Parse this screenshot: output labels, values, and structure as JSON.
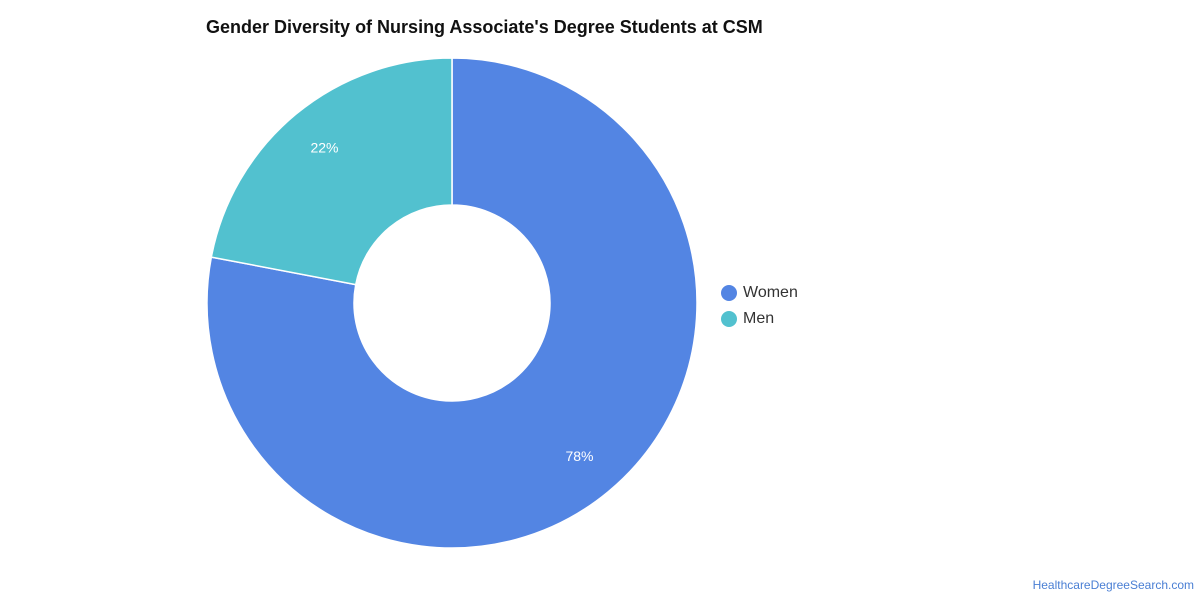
{
  "chart_data": {
    "type": "pie",
    "title": "Gender Diversity of Nursing Associate's Degree Students at CSM",
    "categories": [
      "Women",
      "Men"
    ],
    "values": [
      78,
      22
    ],
    "data_labels": [
      "78%",
      "22%"
    ],
    "colors": [
      "#5385e3",
      "#52c1cf"
    ],
    "legend": "right"
  },
  "credit": "HealthcareDegreeSearch.com"
}
